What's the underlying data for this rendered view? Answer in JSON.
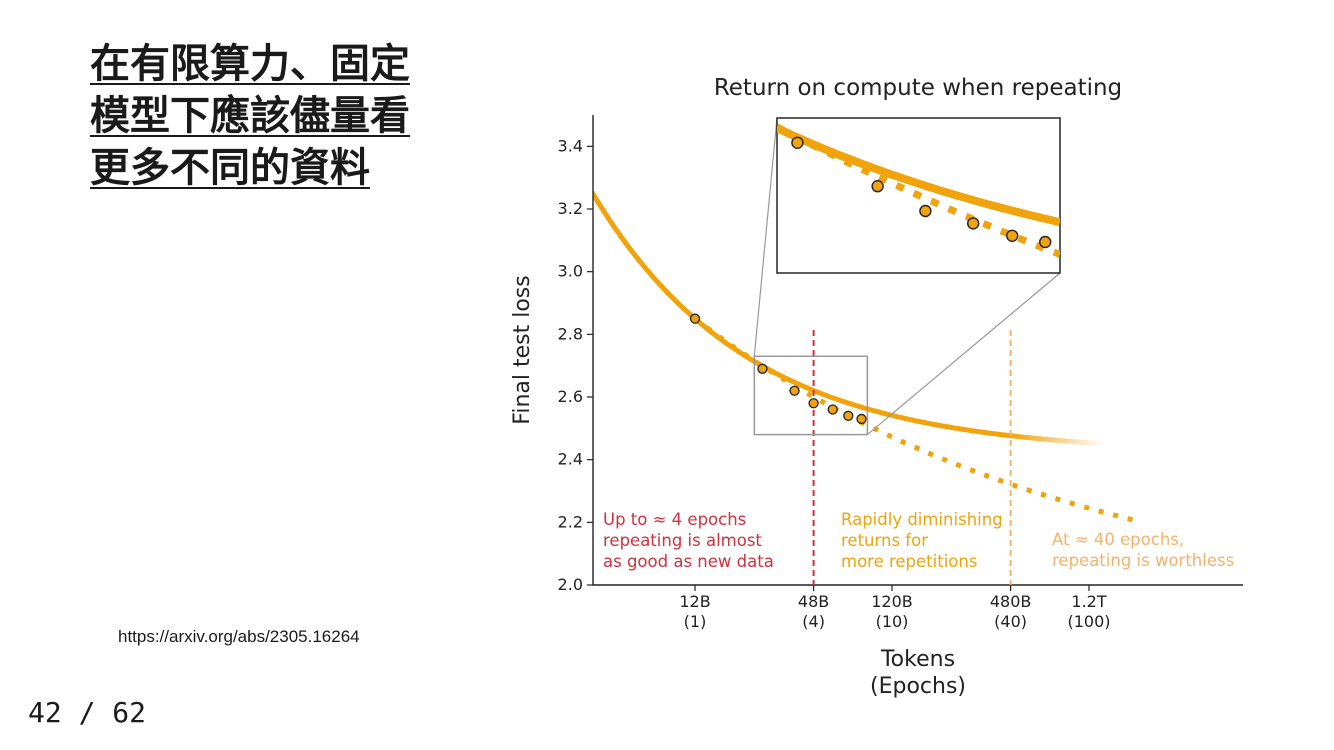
{
  "slide": {
    "heading_lines": [
      "在有限算力、固定",
      "模型下應該儘量看",
      "更多不同的資料"
    ],
    "source_url": "https://arxiv.org/abs/2305.16264",
    "page_counter": "42 / 62"
  },
  "colors": {
    "curve": "#F0A30A",
    "red": "#D0313C",
    "light_orange": "#F6B26B",
    "inset_frame": "#999999"
  },
  "chart_data": {
    "type": "line",
    "title": "Return on compute when repeating",
    "ylabel": "Final test loss",
    "xlabel_lines": [
      "Tokens",
      "(Epochs)"
    ],
    "ylim": [
      2.0,
      3.5
    ],
    "y_ticks": [
      2.0,
      2.2,
      2.4,
      2.6,
      2.8,
      3.0,
      3.2,
      3.4
    ],
    "x_ticks": [
      {
        "label": "12B",
        "sub": "(1)",
        "epochs": 1
      },
      {
        "label": "48B",
        "sub": "(4)",
        "epochs": 4
      },
      {
        "label": "120B",
        "sub": "(10)",
        "epochs": 10
      },
      {
        "label": "480B",
        "sub": "(40)",
        "epochs": 40
      },
      {
        "label": "1.2T",
        "sub": "(100)",
        "epochs": 100
      }
    ],
    "x_scale": "log",
    "points": [
      {
        "epochs": 1,
        "loss": 2.85
      },
      {
        "epochs": 2.2,
        "loss": 2.69
      },
      {
        "epochs": 3.2,
        "loss": 2.62
      },
      {
        "epochs": 4,
        "loss": 2.58
      },
      {
        "epochs": 5,
        "loss": 2.56
      },
      {
        "epochs": 6,
        "loss": 2.54
      },
      {
        "epochs": 7,
        "loss": 2.53
      }
    ],
    "vlines": [
      {
        "epochs": 4,
        "color": "red"
      },
      {
        "epochs": 40,
        "color": "light_orange"
      }
    ],
    "annotations": [
      {
        "lines": [
          "Up to ≈ 4 epochs",
          "repeating is almost",
          "as good as new data"
        ],
        "color": "red"
      },
      {
        "lines": [
          "Rapidly diminishing",
          "returns for",
          "more repetitions"
        ],
        "color": "curve"
      },
      {
        "lines": [
          "At ≈ 40 epochs,",
          "repeating is worthless"
        ],
        "color": "light_orange"
      }
    ],
    "inset": {
      "epochs_range": [
        2,
        7.5
      ],
      "loss_range": [
        2.48,
        2.73
      ]
    }
  }
}
